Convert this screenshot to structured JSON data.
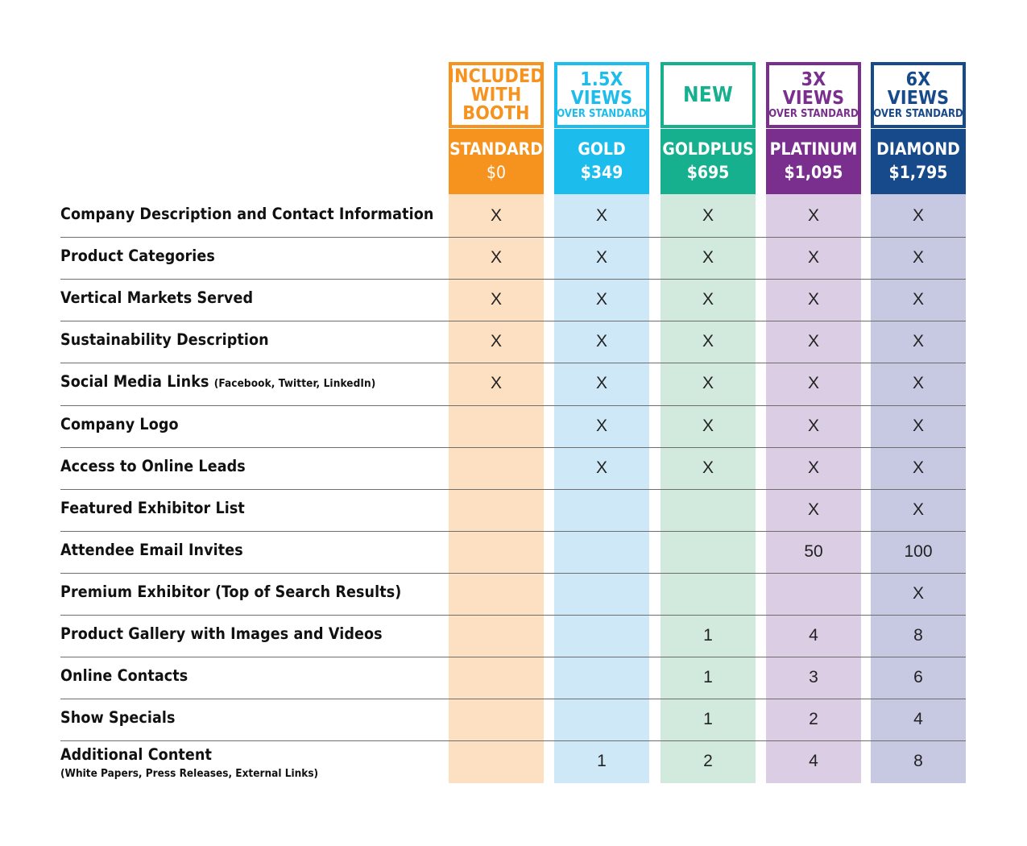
{
  "columns": [
    {
      "badge": [
        "INCLUDED",
        "WITH",
        "BOOTH"
      ],
      "badge_sub": "",
      "name": "STANDARD",
      "price": "$0",
      "color": "#f6931e",
      "light": "#fde0c1"
    },
    {
      "badge": [
        "1.5X",
        "VIEWS"
      ],
      "badge_sub": "OVER STANDARD",
      "name": "GOLD",
      "price": "$349",
      "color": "#1cbdec",
      "light": "#cfe8f8"
    },
    {
      "badge": [
        "NEW"
      ],
      "badge_sub": "",
      "name": "GOLDPLUS",
      "price": "$695",
      "color": "#17b08f",
      "light": "#d2e9dd"
    },
    {
      "badge": [
        "3X",
        "VIEWS"
      ],
      "badge_sub": "OVER STANDARD",
      "name": "PLATINUM",
      "price": "$1,095",
      "color": "#7a2e8e",
      "light": "#dbcde4"
    },
    {
      "badge": [
        "6X",
        "VIEWS"
      ],
      "badge_sub": "OVER STANDARD",
      "name": "DIAMOND",
      "price": "$1,795",
      "color": "#174a8b",
      "light": "#c7c9e2"
    }
  ],
  "rows": [
    {
      "label": "Company Description and Contact Information",
      "sub": "",
      "values": [
        "X",
        "X",
        "X",
        "X",
        "X"
      ]
    },
    {
      "label": "Product Categories",
      "sub": "",
      "values": [
        "X",
        "X",
        "X",
        "X",
        "X"
      ]
    },
    {
      "label": "Vertical Markets Served",
      "sub": "",
      "values": [
        "X",
        "X",
        "X",
        "X",
        "X"
      ]
    },
    {
      "label": "Sustainability Description",
      "sub": "",
      "values": [
        "X",
        "X",
        "X",
        "X",
        "X"
      ]
    },
    {
      "label": "Social Media Links",
      "sub": "(Facebook, Twitter, LinkedIn)",
      "values": [
        "X",
        "X",
        "X",
        "X",
        "X"
      ]
    },
    {
      "label": "Company Logo",
      "sub": "",
      "values": [
        "",
        "X",
        "X",
        "X",
        "X"
      ]
    },
    {
      "label": "Access to Online Leads",
      "sub": "",
      "values": [
        "",
        "X",
        "X",
        "X",
        "X"
      ]
    },
    {
      "label": "Featured Exhibitor List",
      "sub": "",
      "values": [
        "",
        "",
        "",
        "X",
        "X"
      ]
    },
    {
      "label": "Attendee Email Invites",
      "sub": "",
      "values": [
        "",
        "",
        "",
        "50",
        "100"
      ]
    },
    {
      "label": "Premium Exhibitor (Top of Search Results)",
      "sub": "",
      "values": [
        "",
        "",
        "",
        "",
        "X"
      ]
    },
    {
      "label": "Product Gallery with Images and Videos",
      "sub": "",
      "values": [
        "",
        "",
        "1",
        "4",
        "8"
      ]
    },
    {
      "label": "Online Contacts",
      "sub": "",
      "values": [
        "",
        "",
        "1",
        "3",
        "6"
      ]
    },
    {
      "label": "Show Specials",
      "sub": "",
      "values": [
        "",
        "",
        "1",
        "2",
        "4"
      ]
    },
    {
      "label": "Additional Content",
      "sub": "(White Papers, Press Releases, External Links)",
      "values": [
        "",
        "1",
        "2",
        "4",
        "8"
      ]
    }
  ]
}
